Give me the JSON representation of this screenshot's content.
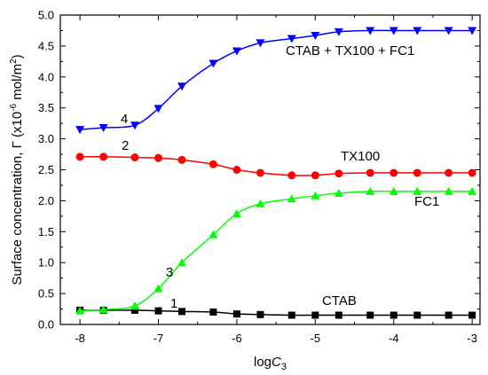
{
  "chart_data": {
    "type": "line",
    "title": "",
    "xlabel": "logC3",
    "xlabel_parts": {
      "main": "log",
      "italic": "C",
      "sub": "3"
    },
    "ylabel": "Surface concentration, Γ (x10⁻⁶ mol/m²)",
    "ylabel_parts": {
      "pre": "Surface concentration, Γ (x10",
      "sup1": "-6",
      "mid": " mol/m",
      "sup2": "2",
      "post": ")"
    },
    "xlim": [
      -8.25,
      -2.9
    ],
    "ylim": [
      0.0,
      5.0
    ],
    "xticks": [
      -8,
      -7,
      -6,
      -5,
      -4,
      -3
    ],
    "xtick_labels": [
      "-8",
      "-7",
      "-6",
      "-5",
      "-4",
      "-3"
    ],
    "yticks": [
      0.0,
      0.5,
      1.0,
      1.5,
      2.0,
      2.5,
      3.0,
      3.5,
      4.0,
      4.5,
      5.0
    ],
    "ytick_labels": [
      "0.0",
      "0.5",
      "1.0",
      "1.5",
      "2.0",
      "2.5",
      "3.0",
      "3.5",
      "4.0",
      "4.5",
      "5.0"
    ],
    "grid": false,
    "series": [
      {
        "name": "CTAB",
        "number": "1",
        "color": "#000000",
        "marker": "square",
        "x": [
          -8.0,
          -7.7,
          -7.3,
          -7.0,
          -6.7,
          -6.3,
          -6.0,
          -5.7,
          -5.3,
          -5.0,
          -4.7,
          -4.3,
          -4.0,
          -3.7,
          -3.3,
          -3.0
        ],
        "y": [
          0.23,
          0.23,
          0.23,
          0.22,
          0.21,
          0.2,
          0.17,
          0.16,
          0.15,
          0.15,
          0.15,
          0.15,
          0.15,
          0.15,
          0.15,
          0.15
        ]
      },
      {
        "name": "TX100",
        "number": "2",
        "color": "#ff0000",
        "marker": "circle",
        "x": [
          -8.0,
          -7.7,
          -7.3,
          -7.0,
          -6.7,
          -6.3,
          -6.0,
          -5.7,
          -5.3,
          -5.0,
          -4.7,
          -4.3,
          -4.0,
          -3.7,
          -3.3,
          -3.0
        ],
        "y": [
          2.71,
          2.71,
          2.7,
          2.69,
          2.66,
          2.59,
          2.5,
          2.45,
          2.41,
          2.41,
          2.44,
          2.45,
          2.45,
          2.45,
          2.45,
          2.45
        ]
      },
      {
        "name": "FC1",
        "number": "3",
        "color": "#00ff00",
        "marker": "triangle-up",
        "x": [
          -8.0,
          -7.7,
          -7.3,
          -7.0,
          -6.7,
          -6.3,
          -6.0,
          -5.7,
          -5.3,
          -5.0,
          -4.7,
          -4.3,
          -4.0,
          -3.7,
          -3.3,
          -3.0
        ],
        "y": [
          0.22,
          0.24,
          0.3,
          0.58,
          1.0,
          1.45,
          1.79,
          1.95,
          2.03,
          2.08,
          2.12,
          2.15,
          2.15,
          2.15,
          2.15,
          2.15
        ]
      },
      {
        "name": "CTAB + TX100 + FC1",
        "number": "4",
        "color": "#0000ff",
        "marker": "triangle-down",
        "x": [
          -8.0,
          -7.7,
          -7.3,
          -7.0,
          -6.7,
          -6.3,
          -6.0,
          -5.7,
          -5.3,
          -5.0,
          -4.7,
          -4.3,
          -4.0,
          -3.7,
          -3.3,
          -3.0
        ],
        "y": [
          3.15,
          3.18,
          3.22,
          3.49,
          3.85,
          4.22,
          4.42,
          4.55,
          4.62,
          4.67,
          4.73,
          4.75,
          4.75,
          4.75,
          4.75,
          4.75
        ]
      }
    ]
  }
}
